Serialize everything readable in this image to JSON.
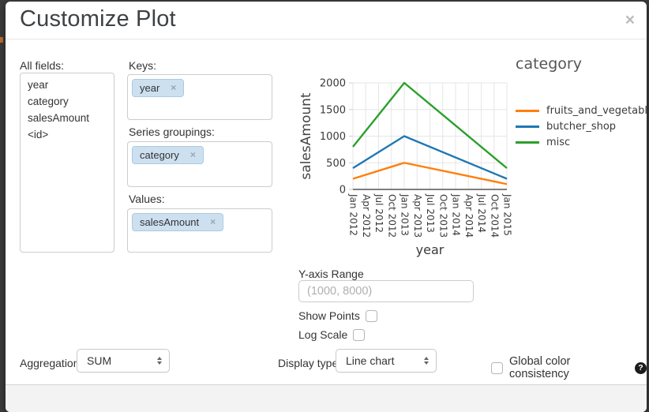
{
  "dialog": {
    "title": "Customize Plot",
    "close_glyph": "×"
  },
  "fields_panel": {
    "all_fields_label": "All fields:",
    "all_fields": [
      "year",
      "category",
      "salesAmount",
      "<id>"
    ],
    "keys_label": "Keys:",
    "keys": [
      "year"
    ],
    "series_groupings_label": "Series groupings:",
    "series_groupings": [
      "category"
    ],
    "values_label": "Values:",
    "values": [
      "salesAmount"
    ],
    "tag_remove_glyph": "×"
  },
  "chart_data": {
    "type": "line",
    "xlabel": "year",
    "ylabel": "salesAmount",
    "legend_title": "category",
    "legend_position": "right",
    "grid": true,
    "x_ticks": [
      "Jan 2012",
      "Apr 2012",
      "Jul 2012",
      "Oct 2012",
      "Jan 2013",
      "Apr 2013",
      "Jul 2013",
      "Oct 2013",
      "Jan 2014",
      "Apr 2014",
      "Jul 2014",
      "Oct 2014",
      "Jan 2015"
    ],
    "y_ticks": [
      0,
      500,
      1000,
      1500,
      2000
    ],
    "ylim": [
      0,
      2000
    ],
    "series": [
      {
        "name": "fruits_and_vegetables",
        "color": "#ff7f0e",
        "points": [
          [
            "Jan 2012",
            200
          ],
          [
            "Jan 2013",
            500
          ],
          [
            "Jan 2015",
            100
          ]
        ]
      },
      {
        "name": "butcher_shop",
        "color": "#1f77b4",
        "points": [
          [
            "Jan 2012",
            400
          ],
          [
            "Jan 2013",
            1000
          ],
          [
            "Jan 2015",
            200
          ]
        ]
      },
      {
        "name": "misc",
        "color": "#2ca02c",
        "points": [
          [
            "Jan 2012",
            800
          ],
          [
            "Jan 2013",
            2000
          ],
          [
            "Jan 2015",
            400
          ]
        ]
      }
    ]
  },
  "options": {
    "y_axis_range_label": "Y-axis Range",
    "y_axis_range_value": "",
    "y_axis_range_placeholder": "(1000, 8000)",
    "show_points_label": "Show Points",
    "show_points_checked": false,
    "log_scale_label": "Log Scale",
    "log_scale_checked": false
  },
  "footer": {
    "aggregation_label": "Aggregation:",
    "aggregation_value": "SUM",
    "display_type_label": "Display type:",
    "display_type_value": "Line chart",
    "global_color_label": "Global color consistency",
    "global_color_checked": false,
    "help_glyph": "?"
  },
  "colors": {
    "tag_bg": "#cde0f0",
    "tag_border": "#accadf",
    "backdrop": "#3b3b3b",
    "grid": "#e6e6e6",
    "axis": "#333333"
  }
}
